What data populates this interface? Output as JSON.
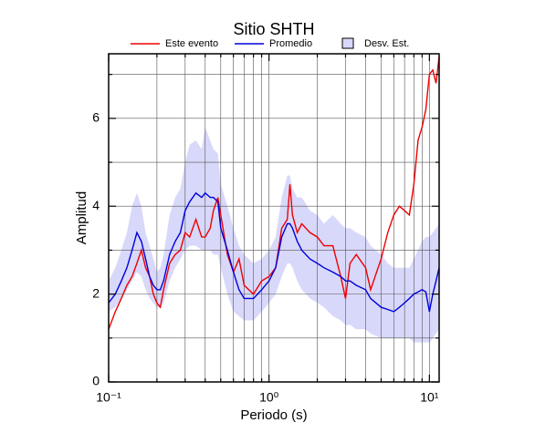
{
  "chart_data": {
    "type": "line",
    "title": "Sitio SHTH",
    "x_label": "Periodo (s)",
    "y_label": "Amplitud",
    "log_x": true,
    "grid": true,
    "xlim": [
      0.1,
      11.5
    ],
    "ylim": [
      0,
      7.47
    ],
    "xticks": [
      {
        "value": 0.1,
        "label": "10⁻¹"
      },
      {
        "value": 1,
        "label": "10⁰"
      },
      {
        "value": 10,
        "label": "10¹"
      }
    ],
    "x_minor_ticks": [
      0.2,
      0.3,
      0.4,
      0.5,
      0.6,
      0.7,
      0.8,
      0.9,
      2,
      3,
      4,
      5,
      6,
      7,
      8,
      9
    ],
    "yticks": [
      0,
      2,
      4,
      6
    ],
    "y_minor_ticks": [
      1,
      3,
      5,
      7
    ],
    "x": [
      0.1,
      0.11,
      0.12,
      0.13,
      0.14,
      0.15,
      0.16,
      0.17,
      0.18,
      0.19,
      0.2,
      0.21,
      0.22,
      0.24,
      0.26,
      0.28,
      0.3,
      0.32,
      0.35,
      0.38,
      0.4,
      0.43,
      0.45,
      0.48,
      0.5,
      0.55,
      0.6,
      0.65,
      0.7,
      0.8,
      0.9,
      1.0,
      1.1,
      1.2,
      1.3,
      1.35,
      1.4,
      1.5,
      1.6,
      1.8,
      2.0,
      2.2,
      2.5,
      2.8,
      3.0,
      3.2,
      3.5,
      4.0,
      4.3,
      5.0,
      5.5,
      6.0,
      6.5,
      7.0,
      7.5,
      8.0,
      8.5,
      9.0,
      9.5,
      10,
      10.5,
      11,
      11.5
    ],
    "series": [
      {
        "name": "Este evento",
        "color": "#ee0000",
        "values": [
          1.2,
          1.6,
          1.9,
          2.2,
          2.4,
          2.7,
          3.0,
          2.6,
          2.4,
          2.0,
          1.8,
          1.7,
          2.1,
          2.7,
          2.9,
          3.0,
          3.4,
          3.3,
          3.7,
          3.3,
          3.3,
          3.5,
          3.9,
          4.2,
          3.8,
          2.9,
          2.5,
          2.8,
          2.2,
          2.0,
          2.3,
          2.4,
          2.6,
          3.5,
          3.7,
          4.5,
          3.8,
          3.4,
          3.6,
          3.4,
          3.3,
          3.1,
          3.1,
          2.4,
          1.9,
          2.7,
          2.9,
          2.6,
          2.1,
          2.8,
          3.4,
          3.8,
          4.0,
          3.9,
          3.8,
          4.5,
          5.5,
          5.8,
          6.2,
          7.0,
          7.1,
          6.8,
          7.4
        ]
      },
      {
        "name": "Promedio",
        "color": "#0000dd",
        "values": [
          1.8,
          2.0,
          2.3,
          2.6,
          3.0,
          3.4,
          3.2,
          2.8,
          2.4,
          2.2,
          2.1,
          2.1,
          2.3,
          2.9,
          3.2,
          3.4,
          3.9,
          4.1,
          4.3,
          4.2,
          4.3,
          4.2,
          4.2,
          4.1,
          3.5,
          3.0,
          2.5,
          2.1,
          1.9,
          1.9,
          2.1,
          2.3,
          2.6,
          3.3,
          3.6,
          3.6,
          3.5,
          3.2,
          3.0,
          2.8,
          2.7,
          2.6,
          2.5,
          2.4,
          2.3,
          2.3,
          2.2,
          2.1,
          1.9,
          1.7,
          1.65,
          1.6,
          1.7,
          1.8,
          1.9,
          2.0,
          2.05,
          2.1,
          2.05,
          1.6,
          2.0,
          2.3,
          2.6
        ]
      },
      {
        "name": "Desv. Est.",
        "type": "band",
        "color": "#d8d8fa",
        "lower": [
          1.6,
          1.7,
          1.9,
          2.1,
          2.3,
          2.5,
          2.4,
          2.1,
          1.9,
          1.8,
          1.7,
          1.7,
          1.8,
          2.3,
          2.6,
          2.8,
          3.0,
          3.1,
          3.1,
          3.0,
          3.0,
          3.0,
          2.9,
          2.9,
          2.6,
          2.0,
          1.6,
          1.5,
          1.4,
          1.4,
          1.6,
          1.8,
          2.0,
          2.4,
          2.7,
          2.7,
          2.6,
          2.3,
          2.1,
          1.9,
          1.8,
          1.7,
          1.5,
          1.4,
          1.3,
          1.3,
          1.2,
          1.2,
          1.1,
          1.0,
          1.0,
          1.0,
          1.0,
          1.0,
          1.0,
          0.9,
          0.9,
          0.9,
          0.9,
          0.9,
          1.0,
          1.1,
          1.2
        ],
        "upper": [
          2.3,
          2.6,
          3.0,
          3.4,
          4.0,
          4.3,
          4.0,
          3.4,
          3.1,
          2.8,
          2.5,
          2.6,
          2.9,
          3.8,
          4.2,
          4.4,
          5.0,
          5.4,
          5.5,
          5.3,
          5.8,
          5.5,
          5.3,
          5.2,
          4.5,
          4.0,
          3.5,
          3.1,
          2.9,
          2.7,
          2.8,
          3.0,
          3.3,
          4.2,
          4.7,
          4.7,
          4.4,
          4.2,
          4.2,
          3.9,
          3.8,
          3.6,
          3.8,
          3.6,
          3.5,
          3.5,
          3.4,
          3.3,
          3.1,
          2.9,
          2.7,
          2.6,
          2.6,
          2.6,
          2.6,
          2.8,
          3.0,
          3.2,
          3.3,
          3.3,
          3.4,
          3.5,
          3.6
        ]
      }
    ]
  }
}
